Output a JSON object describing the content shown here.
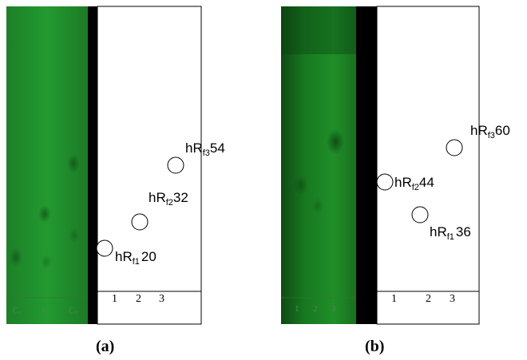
{
  "panels": [
    {
      "caption": "(a)",
      "plate_lane_marks": [
        "C₁",
        "C₂",
        "C₃"
      ],
      "schematic_lane_numbers": [
        "1",
        "2",
        "3"
      ],
      "spots": [
        {
          "prefix": "hR",
          "subscript": "f1",
          "value": "20"
        },
        {
          "prefix": "hR",
          "subscript": "f2",
          "value": "32"
        },
        {
          "prefix": "hR",
          "subscript": "f3",
          "value": "54"
        }
      ]
    },
    {
      "caption": "(b)",
      "plate_lane_marks": [
        "1",
        "2",
        "3"
      ],
      "schematic_lane_numbers": [
        "1",
        "2",
        "3"
      ],
      "spots": [
        {
          "prefix": "hR",
          "subscript": "f1",
          "value": "36"
        },
        {
          "prefix": "hR",
          "subscript": "f2",
          "value": "44"
        },
        {
          "prefix": "hR",
          "subscript": "f3",
          "value": "60"
        }
      ]
    }
  ],
  "colors": {
    "plate_green": "#1f8a2a",
    "plate_dark": "#0e4d14",
    "divider": "#000000",
    "schematic_bg": "#ffffff"
  }
}
